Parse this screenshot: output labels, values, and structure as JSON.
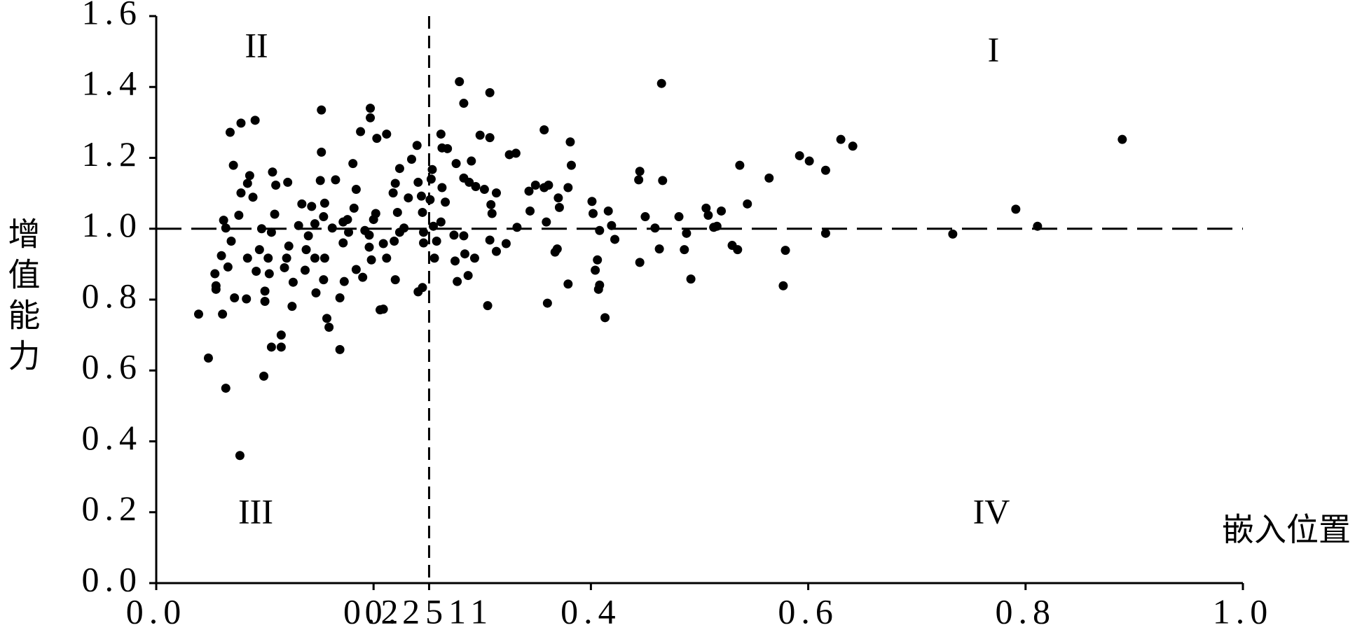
{
  "chart_data": {
    "type": "scatter",
    "x_label": "嵌入位置",
    "y_label": "增值能力",
    "color": "#000000",
    "xlim": [
      0,
      1.0
    ],
    "ylim": [
      0,
      1.6
    ],
    "xticks": [
      {
        "value": 0,
        "label": "0.0"
      },
      {
        "value": 0.2,
        "label": "0.2"
      },
      {
        "value": 0.2511,
        "label": "0.2511"
      },
      {
        "value": 0.4,
        "label": "0.4"
      },
      {
        "value": 0.6,
        "label": "0.6"
      },
      {
        "value": 0.8,
        "label": "0.8"
      },
      {
        "value": 1.0,
        "label": "1.0"
      }
    ],
    "yticks": [
      {
        "value": 0,
        "label": "0.0"
      },
      0.2,
      0.4,
      0.6,
      0.8,
      {
        "value": 1.0,
        "label": "1.0"
      },
      1.2,
      1.4,
      1.6
    ],
    "vline": 0.2511,
    "hline": 1.0,
    "quadrant_labels": [
      "I",
      "II",
      "III",
      "IV"
    ],
    "x": [
      0.039,
      0.048,
      0.064,
      0.077,
      0.099,
      0.106,
      0.115,
      0.115,
      0.169,
      0.159,
      0.157,
      0.068,
      0.078,
      0.091,
      0.071,
      0.152,
      0.197,
      0.197,
      0.188,
      0.212,
      0.203,
      0.279,
      0.307,
      0.283,
      0.465,
      0.889,
      0.791,
      0.811,
      0.733,
      0.63,
      0.641,
      0.592,
      0.601,
      0.616,
      0.616,
      0.577,
      0.579,
      0.564,
      0.544,
      0.537,
      0.53,
      0.535,
      0.52,
      0.516,
      0.513,
      0.506,
      0.508,
      0.492,
      0.488,
      0.486,
      0.481,
      0.466,
      0.463,
      0.459,
      0.45,
      0.445,
      0.445,
      0.444,
      0.422,
      0.419,
      0.416,
      0.413,
      0.407,
      0.408,
      0.404,
      0.406,
      0.408,
      0.402,
      0.401,
      0.381,
      0.382,
      0.379,
      0.379,
      0.369,
      0.367,
      0.371,
      0.37,
      0.357,
      0.36,
      0.359,
      0.361,
      0.357,
      0.349,
      0.344,
      0.343,
      0.332,
      0.331,
      0.325,
      0.313,
      0.305,
      0.307,
      0.298,
      0.302,
      0.322,
      0.313,
      0.307,
      0.309,
      0.308,
      0.29,
      0.294,
      0.293,
      0.287,
      0.284,
      0.275,
      0.277,
      0.274,
      0.283,
      0.288,
      0.283,
      0.276,
      0.268,
      0.262,
      0.263,
      0.263,
      0.266,
      0.262,
      0.258,
      0.256,
      0.254,
      0.253,
      0.252,
      0.255,
      0.245,
      0.241,
      0.246,
      0.246,
      0.245,
      0.244,
      0.241,
      0.24,
      0.235,
      0.232,
      0.228,
      0.224,
      0.22,
      0.218,
      0.219,
      0.224,
      0.222,
      0.22,
      0.209,
      0.212,
      0.206,
      0.209,
      0.202,
      0.2,
      0.196,
      0.198,
      0.196,
      0.192,
      0.19,
      0.184,
      0.182,
      0.184,
      0.181,
      0.177,
      0.176,
      0.172,
      0.172,
      0.173,
      0.169,
      0.162,
      0.165,
      0.155,
      0.154,
      0.152,
      0.151,
      0.155,
      0.154,
      0.147,
      0.146,
      0.146,
      0.143,
      0.14,
      0.138,
      0.137,
      0.134,
      0.131,
      0.126,
      0.125,
      0.122,
      0.12,
      0.118,
      0.121,
      0.11,
      0.107,
      0.109,
      0.106,
      0.104,
      0.103,
      0.1,
      0.1,
      0.097,
      0.095,
      0.092,
      0.089,
      0.086,
      0.084,
      0.083,
      0.084,
      0.078,
      0.076,
      0.072,
      0.069,
      0.066,
      0.064,
      0.062,
      0.06,
      0.054,
      0.055,
      0.055,
      0.061
    ],
    "values": [
      0.759,
      0.635,
      0.55,
      0.36,
      0.584,
      0.666,
      0.666,
      0.7,
      0.659,
      0.722,
      0.747,
      1.272,
      1.298,
      1.306,
      1.179,
      1.335,
      1.34,
      1.313,
      1.274,
      1.267,
      1.255,
      1.415,
      1.384,
      1.354,
      1.41,
      1.252,
      1.055,
      1.007,
      0.985,
      1.252,
      1.233,
      1.206,
      1.191,
      1.165,
      0.987,
      0.839,
      0.939,
      1.143,
      1.07,
      1.179,
      0.953,
      0.941,
      1.05,
      1.007,
      1.004,
      1.058,
      1.038,
      0.858,
      0.987,
      0.941,
      1.034,
      1.136,
      0.943,
      1.002,
      1.034,
      0.905,
      1.162,
      1.138,
      0.97,
      1.009,
      1.05,
      0.749,
      0.829,
      0.841,
      0.883,
      0.912,
      0.995,
      1.043,
      1.077,
      1.245,
      1.179,
      1.116,
      0.844,
      0.943,
      0.934,
      1.06,
      1.087,
      1.279,
      0.79,
      1.019,
      1.123,
      1.116,
      1.123,
      1.05,
      1.106,
      1.004,
      1.213,
      1.209,
      1.101,
      0.783,
      1.257,
      1.264,
      1.111,
      0.958,
      0.936,
      0.968,
      1.043,
      1.068,
      1.191,
      1.119,
      0.917,
      0.868,
      0.929,
      0.909,
      0.851,
      0.982,
      0.98,
      1.131,
      1.143,
      1.184,
      1.226,
      1.267,
      1.228,
      1.116,
      1.075,
      1.019,
      0.965,
      0.917,
      1.167,
      1.14,
      1.082,
      1.007,
      0.834,
      0.822,
      0.99,
      0.96,
      1.046,
      1.092,
      1.131,
      1.235,
      1.196,
      1.087,
      1.002,
      1.17,
      1.128,
      1.101,
      0.965,
      0.99,
      1.046,
      0.856,
      0.958,
      0.917,
      0.771,
      0.773,
      1.043,
      1.026,
      0.982,
      0.912,
      0.948,
      0.995,
      0.863,
      0.885,
      1.058,
      1.111,
      1.184,
      0.99,
      1.026,
      1.019,
      0.96,
      0.851,
      0.805,
      1.002,
      1.138,
      1.072,
      1.034,
      1.216,
      1.136,
      0.917,
      0.856,
      0.819,
      0.917,
      1.014,
      1.063,
      0.98,
      0.941,
      0.883,
      1.07,
      1.009,
      0.849,
      0.781,
      0.951,
      0.917,
      0.89,
      1.131,
      1.123,
      1.16,
      1.041,
      0.99,
      0.873,
      0.917,
      0.824,
      0.795,
      1.0,
      0.941,
      0.88,
      1.089,
      1.15,
      1.128,
      0.802,
      0.917,
      1.101,
      1.038,
      0.805,
      0.965,
      0.892,
      1.002,
      1.024,
      0.924,
      0.873,
      0.839,
      0.829,
      0.759
    ]
  }
}
